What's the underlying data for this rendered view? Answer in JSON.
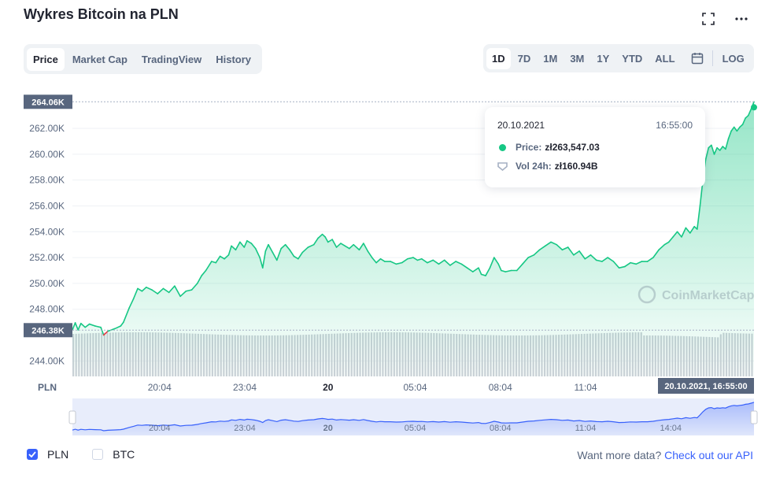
{
  "header": {
    "title": "Wykres Bitcoin na PLN"
  },
  "icons": {
    "fullscreen": "fullscreen-icon",
    "more": "more-icon",
    "calendar": "calendar-icon"
  },
  "tabs": [
    {
      "label": "Price",
      "active": true
    },
    {
      "label": "Market Cap",
      "active": false
    },
    {
      "label": "TradingView",
      "active": false
    },
    {
      "label": "History",
      "active": false
    }
  ],
  "ranges": [
    {
      "label": "1D",
      "active": true
    },
    {
      "label": "7D",
      "active": false
    },
    {
      "label": "1M",
      "active": false
    },
    {
      "label": "3M",
      "active": false
    },
    {
      "label": "1Y",
      "active": false
    },
    {
      "label": "YTD",
      "active": false
    },
    {
      "label": "ALL",
      "active": false
    }
  ],
  "log_label": "LOG",
  "tooltip": {
    "date": "20.10.2021",
    "time": "16:55:00",
    "price_label": "Price:",
    "price_value": "zł263,547.03",
    "vol_label": "Vol 24h:",
    "vol_value": "zł160.94B"
  },
  "legend": [
    {
      "label": "PLN",
      "checked": true
    },
    {
      "label": "BTC",
      "checked": false
    }
  ],
  "api": {
    "text": "Want more data?",
    "link": "Check out our API"
  },
  "watermark": "CoinMarketCap",
  "colors": {
    "up": "#16c784",
    "down": "#ea3943",
    "accent": "#3861fb",
    "navigator": "#3861fb"
  },
  "chart_data": {
    "type": "area",
    "currency_label": "PLN",
    "yticks": [
      "262.00K",
      "260.00K",
      "258.00K",
      "256.00K",
      "254.00K",
      "252.00K",
      "250.00K",
      "248.00K",
      "244.00K"
    ],
    "ytick_values": [
      262000,
      260000,
      258000,
      256000,
      254000,
      252000,
      250000,
      248000,
      244000
    ],
    "ylim": [
      242800,
      264930
    ],
    "max_label": "264.06K",
    "max_value": 264060,
    "open_label": "246.38K",
    "open_value": 246380,
    "xticks": [
      "20:04",
      "23:04",
      "20",
      "05:04",
      "08:04",
      "11:04"
    ],
    "xtick_hours": [
      3.07,
      6.07,
      9,
      12.07,
      15.07,
      18.07
    ],
    "nav_xticks": [
      "20:04",
      "23:04",
      "20",
      "05:04",
      "08:04",
      "11:04",
      "14:04"
    ],
    "nav_xtick_hours": [
      3.07,
      6.07,
      9,
      12.07,
      15.07,
      18.07,
      21.07
    ],
    "crosshair_label": "20.10.2021, 16:55:00",
    "x_range_hours": [
      0,
      24
    ],
    "x_unit": "hours since 20:04 minus 3.07 (start of 1D window)",
    "series": [
      {
        "values": [
          [
            0.0,
            246.4
          ],
          [
            0.1,
            246.95
          ],
          [
            0.2,
            246.4
          ],
          [
            0.3,
            246.9
          ],
          [
            0.45,
            246.6
          ],
          [
            0.6,
            246.85
          ],
          [
            0.8,
            246.7
          ],
          [
            1.0,
            246.6
          ],
          [
            1.1,
            246.0
          ],
          [
            1.25,
            246.3
          ],
          [
            1.5,
            246.5
          ],
          [
            1.7,
            246.7
          ],
          [
            1.8,
            247.0
          ],
          [
            2.0,
            248.1
          ],
          [
            2.15,
            248.8
          ],
          [
            2.3,
            249.6
          ],
          [
            2.45,
            249.4
          ],
          [
            2.6,
            249.7
          ],
          [
            2.8,
            249.5
          ],
          [
            3.0,
            249.2
          ],
          [
            3.2,
            249.6
          ],
          [
            3.4,
            249.3
          ],
          [
            3.6,
            249.8
          ],
          [
            3.8,
            249.0
          ],
          [
            4.0,
            249.4
          ],
          [
            4.2,
            249.5
          ],
          [
            4.4,
            250.0
          ],
          [
            4.55,
            250.6
          ],
          [
            4.7,
            251.0
          ],
          [
            4.9,
            251.7
          ],
          [
            5.05,
            251.6
          ],
          [
            5.2,
            252.1
          ],
          [
            5.35,
            251.9
          ],
          [
            5.5,
            252.2
          ],
          [
            5.6,
            252.9
          ],
          [
            5.75,
            252.6
          ],
          [
            5.9,
            253.2
          ],
          [
            6.05,
            252.8
          ],
          [
            6.15,
            253.3
          ],
          [
            6.3,
            253.1
          ],
          [
            6.45,
            252.7
          ],
          [
            6.6,
            252.0
          ],
          [
            6.7,
            251.2
          ],
          [
            6.8,
            252.5
          ],
          [
            6.9,
            253.0
          ],
          [
            7.05,
            252.4
          ],
          [
            7.2,
            251.8
          ],
          [
            7.35,
            252.7
          ],
          [
            7.5,
            253.0
          ],
          [
            7.65,
            252.6
          ],
          [
            7.8,
            252.1
          ],
          [
            7.95,
            251.9
          ],
          [
            8.1,
            252.4
          ],
          [
            8.3,
            252.8
          ],
          [
            8.5,
            253.0
          ],
          [
            8.65,
            253.5
          ],
          [
            8.8,
            253.8
          ],
          [
            8.9,
            253.6
          ],
          [
            9.0,
            253.2
          ],
          [
            9.15,
            253.4
          ],
          [
            9.3,
            252.8
          ],
          [
            9.45,
            253.1
          ],
          [
            9.6,
            252.9
          ],
          [
            9.75,
            252.7
          ],
          [
            9.9,
            253.0
          ],
          [
            10.1,
            252.6
          ],
          [
            10.25,
            253.1
          ],
          [
            10.4,
            252.5
          ],
          [
            10.55,
            252.0
          ],
          [
            10.7,
            251.6
          ],
          [
            10.85,
            251.9
          ],
          [
            11.0,
            251.7
          ],
          [
            11.2,
            251.7
          ],
          [
            11.4,
            251.5
          ],
          [
            11.6,
            251.6
          ],
          [
            11.8,
            251.9
          ],
          [
            12.0,
            252.0
          ],
          [
            12.15,
            251.8
          ],
          [
            12.3,
            251.9
          ],
          [
            12.5,
            251.6
          ],
          [
            12.7,
            251.8
          ],
          [
            12.9,
            251.5
          ],
          [
            13.1,
            251.8
          ],
          [
            13.3,
            251.4
          ],
          [
            13.5,
            251.7
          ],
          [
            13.7,
            251.5
          ],
          [
            13.9,
            251.2
          ],
          [
            14.1,
            250.9
          ],
          [
            14.3,
            251.2
          ],
          [
            14.4,
            250.7
          ],
          [
            14.55,
            250.6
          ],
          [
            14.7,
            251.2
          ],
          [
            14.85,
            252.0
          ],
          [
            15.0,
            251.5
          ],
          [
            15.1,
            251.0
          ],
          [
            15.25,
            250.9
          ],
          [
            15.45,
            251.0
          ],
          [
            15.65,
            251.0
          ],
          [
            15.85,
            251.5
          ],
          [
            16.05,
            252.0
          ],
          [
            16.25,
            252.2
          ],
          [
            16.45,
            252.6
          ],
          [
            16.65,
            252.9
          ],
          [
            16.85,
            253.2
          ],
          [
            17.05,
            253.0
          ],
          [
            17.25,
            252.6
          ],
          [
            17.45,
            252.8
          ],
          [
            17.65,
            252.2
          ],
          [
            17.85,
            252.5
          ],
          [
            18.05,
            251.9
          ],
          [
            18.25,
            252.2
          ],
          [
            18.45,
            251.8
          ],
          [
            18.65,
            251.7
          ],
          [
            18.85,
            252.0
          ],
          [
            19.05,
            251.7
          ],
          [
            19.25,
            251.2
          ],
          [
            19.45,
            251.3
          ],
          [
            19.65,
            251.6
          ],
          [
            19.85,
            251.5
          ],
          [
            20.05,
            251.7
          ],
          [
            20.25,
            251.7
          ],
          [
            20.45,
            252.0
          ],
          [
            20.65,
            252.6
          ],
          [
            20.85,
            253.0
          ],
          [
            21.0,
            253.2
          ],
          [
            21.15,
            253.6
          ],
          [
            21.3,
            254.0
          ],
          [
            21.45,
            253.6
          ],
          [
            21.6,
            254.3
          ],
          [
            21.75,
            253.9
          ],
          [
            21.9,
            254.4
          ],
          [
            22.0,
            254.2
          ],
          [
            22.1,
            256.0
          ],
          [
            22.2,
            258.0
          ],
          [
            22.3,
            259.6
          ],
          [
            22.4,
            260.5
          ],
          [
            22.5,
            260.7
          ],
          [
            22.6,
            260.0
          ],
          [
            22.7,
            260.5
          ],
          [
            22.8,
            260.3
          ],
          [
            22.9,
            260.6
          ],
          [
            23.0,
            260.4
          ],
          [
            23.1,
            261.2
          ],
          [
            23.2,
            261.8
          ],
          [
            23.3,
            262.1
          ],
          [
            23.4,
            261.8
          ],
          [
            23.5,
            262.1
          ],
          [
            23.6,
            262.3
          ],
          [
            23.7,
            262.8
          ],
          [
            23.8,
            263.0
          ],
          [
            23.9,
            263.5
          ],
          [
            24.0,
            264.06
          ]
        ]
      }
    ]
  }
}
